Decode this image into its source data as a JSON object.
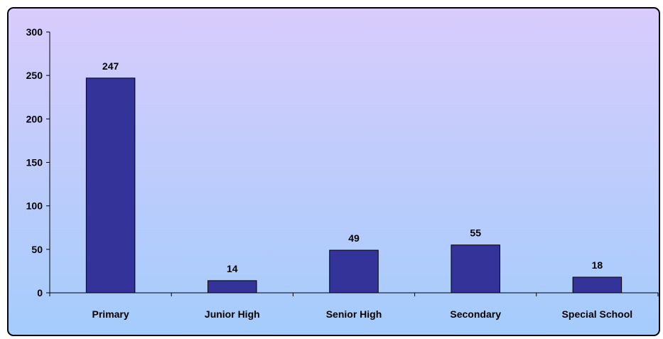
{
  "chart_data": {
    "type": "bar",
    "title": "",
    "xlabel": "",
    "ylabel": "",
    "categories": [
      "Primary",
      "Junior High",
      "Senior High",
      "Secondary",
      "Special School"
    ],
    "values": [
      247,
      14,
      49,
      55,
      18
    ],
    "data_labels": [
      "247",
      "14",
      "49",
      "55",
      "18"
    ],
    "ylim": [
      0,
      300
    ],
    "yticks": [
      0,
      50,
      100,
      150,
      200,
      250,
      300
    ],
    "grid": false,
    "legend": "none"
  },
  "colors": {
    "bar_fill": "#333399",
    "bar_stroke": "#000000",
    "background_top": "#d8ccfc",
    "background_bottom": "#a4ccfc",
    "axis": "#000000"
  }
}
